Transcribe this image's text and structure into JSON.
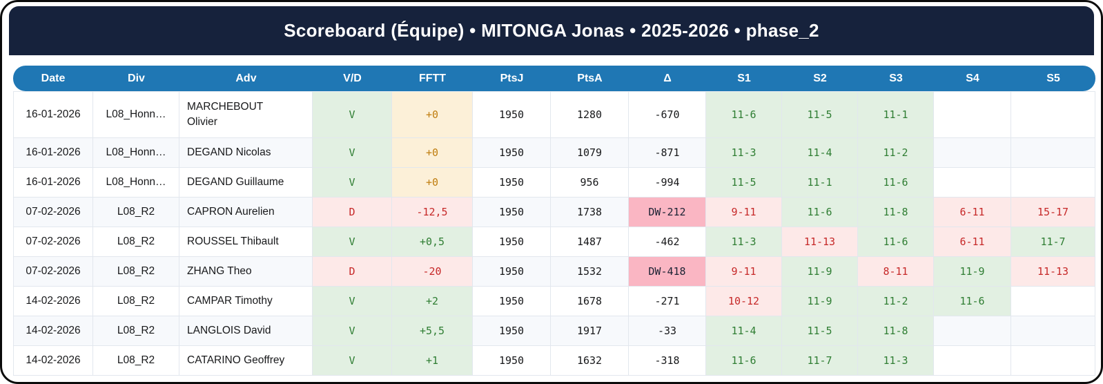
{
  "title": "Scoreboard (Équipe) • MITONGA Jonas • 2025-2026 • phase_2",
  "colors": {
    "title_bar_bg": "#16223c",
    "header_bg": "#1f77b4",
    "win_bg": "#e2f0e2",
    "win_text": "#2e7d32",
    "loss_bg": "#fde9e8",
    "loss_text": "#c62828",
    "zero_bg": "#fcf0d8",
    "zero_text": "#bf7d0e",
    "dw_bg": "#fab6c3",
    "stripe_bg": "#f7f9fc"
  },
  "table": {
    "headers": [
      {
        "label": "Date",
        "key": "date"
      },
      {
        "label": "Div",
        "key": "div"
      },
      {
        "label": "Adv",
        "key": "adv"
      },
      {
        "label": "V/D",
        "key": "vd"
      },
      {
        "label": "FFTT",
        "key": "fftt"
      },
      {
        "label": "PtsJ",
        "key": "ptsj"
      },
      {
        "label": "PtsA",
        "key": "ptsa"
      },
      {
        "label": "Δ",
        "key": "delta"
      },
      {
        "label": "S1",
        "key": "s1"
      },
      {
        "label": "S2",
        "key": "s2"
      },
      {
        "label": "S3",
        "key": "s3"
      },
      {
        "label": "S4",
        "key": "s4"
      },
      {
        "label": "S5",
        "key": "s5"
      }
    ],
    "rows": [
      {
        "date": "16-01-2026",
        "division": "L08_Honn…",
        "opponent": "MARCHEBOUT Olivier",
        "result": "V",
        "fftt": {
          "text": "+0",
          "tone": "zero"
        },
        "pts_j": "1950",
        "pts_a": "1280",
        "delta": {
          "text": "-670",
          "tone": "plain"
        },
        "sets": [
          {
            "text": "11-6",
            "res": "w"
          },
          {
            "text": "11-5",
            "res": "w"
          },
          {
            "text": "11-1",
            "res": "w"
          },
          {
            "text": "",
            "res": ""
          },
          {
            "text": "",
            "res": ""
          }
        ]
      },
      {
        "date": "16-01-2026",
        "division": "L08_Honn…",
        "opponent": "DEGAND Nicolas",
        "result": "V",
        "fftt": {
          "text": "+0",
          "tone": "zero"
        },
        "pts_j": "1950",
        "pts_a": "1079",
        "delta": {
          "text": "-871",
          "tone": "plain"
        },
        "sets": [
          {
            "text": "11-3",
            "res": "w"
          },
          {
            "text": "11-4",
            "res": "w"
          },
          {
            "text": "11-2",
            "res": "w"
          },
          {
            "text": "",
            "res": ""
          },
          {
            "text": "",
            "res": ""
          }
        ]
      },
      {
        "date": "16-01-2026",
        "division": "L08_Honn…",
        "opponent": "DEGAND Guillaume",
        "result": "V",
        "fftt": {
          "text": "+0",
          "tone": "zero"
        },
        "pts_j": "1950",
        "pts_a": "956",
        "delta": {
          "text": "-994",
          "tone": "plain"
        },
        "sets": [
          {
            "text": "11-5",
            "res": "w"
          },
          {
            "text": "11-1",
            "res": "w"
          },
          {
            "text": "11-6",
            "res": "w"
          },
          {
            "text": "",
            "res": ""
          },
          {
            "text": "",
            "res": ""
          }
        ]
      },
      {
        "date": "07-02-2026",
        "division": "L08_R2",
        "opponent": "CAPRON Aurelien",
        "result": "D",
        "fftt": {
          "text": "-12,5",
          "tone": "neg"
        },
        "pts_j": "1950",
        "pts_a": "1738",
        "delta": {
          "text": "DW-212",
          "tone": "dw"
        },
        "sets": [
          {
            "text": "9-11",
            "res": "l"
          },
          {
            "text": "11-6",
            "res": "w"
          },
          {
            "text": "11-8",
            "res": "w"
          },
          {
            "text": "6-11",
            "res": "l"
          },
          {
            "text": "15-17",
            "res": "l"
          }
        ]
      },
      {
        "date": "07-02-2026",
        "division": "L08_R2",
        "opponent": "ROUSSEL Thibault",
        "result": "V",
        "fftt": {
          "text": "+0,5",
          "tone": "pos"
        },
        "pts_j": "1950",
        "pts_a": "1487",
        "delta": {
          "text": "-462",
          "tone": "plain"
        },
        "sets": [
          {
            "text": "11-3",
            "res": "w"
          },
          {
            "text": "11-13",
            "res": "l"
          },
          {
            "text": "11-6",
            "res": "w"
          },
          {
            "text": "6-11",
            "res": "l"
          },
          {
            "text": "11-7",
            "res": "w"
          }
        ]
      },
      {
        "date": "07-02-2026",
        "division": "L08_R2",
        "opponent": "ZHANG Theo",
        "result": "D",
        "fftt": {
          "text": "-20",
          "tone": "neg"
        },
        "pts_j": "1950",
        "pts_a": "1532",
        "delta": {
          "text": "DW-418",
          "tone": "dw"
        },
        "sets": [
          {
            "text": "9-11",
            "res": "l"
          },
          {
            "text": "11-9",
            "res": "w"
          },
          {
            "text": "8-11",
            "res": "l"
          },
          {
            "text": "11-9",
            "res": "w"
          },
          {
            "text": "11-13",
            "res": "l"
          }
        ]
      },
      {
        "date": "14-02-2026",
        "division": "L08_R2",
        "opponent": "CAMPAR Timothy",
        "result": "V",
        "fftt": {
          "text": "+2",
          "tone": "pos"
        },
        "pts_j": "1950",
        "pts_a": "1678",
        "delta": {
          "text": "-271",
          "tone": "plain"
        },
        "sets": [
          {
            "text": "10-12",
            "res": "l"
          },
          {
            "text": "11-9",
            "res": "w"
          },
          {
            "text": "11-2",
            "res": "w"
          },
          {
            "text": "11-6",
            "res": "w"
          },
          {
            "text": "",
            "res": ""
          }
        ]
      },
      {
        "date": "14-02-2026",
        "division": "L08_R2",
        "opponent": "LANGLOIS David",
        "result": "V",
        "fftt": {
          "text": "+5,5",
          "tone": "pos"
        },
        "pts_j": "1950",
        "pts_a": "1917",
        "delta": {
          "text": "-33",
          "tone": "plain"
        },
        "sets": [
          {
            "text": "11-4",
            "res": "w"
          },
          {
            "text": "11-5",
            "res": "w"
          },
          {
            "text": "11-8",
            "res": "w"
          },
          {
            "text": "",
            "res": ""
          },
          {
            "text": "",
            "res": ""
          }
        ]
      },
      {
        "date": "14-02-2026",
        "division": "L08_R2",
        "opponent": "CATARINO Geoffrey",
        "result": "V",
        "fftt": {
          "text": "+1",
          "tone": "pos"
        },
        "pts_j": "1950",
        "pts_a": "1632",
        "delta": {
          "text": "-318",
          "tone": "plain"
        },
        "sets": [
          {
            "text": "11-6",
            "res": "w"
          },
          {
            "text": "11-7",
            "res": "w"
          },
          {
            "text": "11-3",
            "res": "w"
          },
          {
            "text": "",
            "res": ""
          },
          {
            "text": "",
            "res": ""
          }
        ]
      }
    ]
  }
}
